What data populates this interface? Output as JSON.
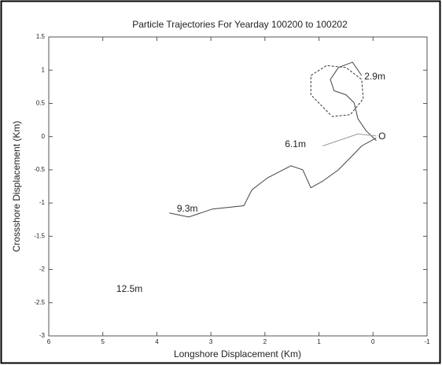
{
  "chart_data": {
    "type": "line",
    "title": "Particle Trajectories For Yearday 100200 to 100202",
    "x_label": "Longshore Displacement (Km)",
    "y_label": "Crossshore Displacement (Km)",
    "xlim": [
      6,
      -1
    ],
    "ylim": [
      -3,
      1.5
    ],
    "xticks": [
      6,
      5,
      4,
      3,
      2,
      1,
      0,
      -1
    ],
    "yticks": [
      1.5,
      1,
      0.5,
      0,
      -0.5,
      -1,
      -1.5,
      -2,
      -2.5,
      -3
    ],
    "series": [
      {
        "color": "#444444",
        "dash": false,
        "x": [
          -0.06,
          0.13,
          0.28,
          0.35,
          0.5,
          0.72,
          0.79,
          0.64,
          0.38,
          0.21
        ],
        "values": [
          -0.06,
          0.09,
          0.27,
          0.51,
          0.63,
          0.69,
          0.86,
          1.04,
          1.12,
          0.92
        ]
      },
      {
        "color": "#333333",
        "dash": true,
        "x": [
          0.79,
          1.15,
          1.15,
          0.86,
          0.5,
          0.21,
          0.18,
          0.42,
          0.79
        ],
        "values": [
          0.33,
          0.63,
          0.92,
          1.07,
          1.04,
          0.86,
          0.57,
          0.33,
          0.3
        ]
      },
      {
        "color": "#444444",
        "dash": false,
        "x": [
          -0.06,
          0.21,
          0.35,
          0.64,
          0.93,
          1.15,
          1.3,
          1.52,
          1.95,
          2.24,
          2.39,
          2.97,
          3.41,
          3.77
        ],
        "values": [
          -0.02,
          -0.14,
          -0.26,
          -0.5,
          -0.67,
          -0.77,
          -0.5,
          -0.44,
          -0.62,
          -0.8,
          -1.04,
          -1.09,
          -1.21,
          -1.15
        ]
      },
      {
        "color": "#999999",
        "dash": false,
        "x": [
          -0.06,
          0.28,
          0.64,
          0.93
        ],
        "values": [
          0.01,
          0.04,
          -0.06,
          -0.14
        ]
      }
    ],
    "annotations": [
      {
        "text": "2.9m",
        "x": 0.16,
        "y": 0.9
      },
      {
        "text": "6.1m",
        "x": 1.63,
        "y": -0.12
      },
      {
        "text": "9.3m",
        "x": 3.63,
        "y": -1.09
      },
      {
        "text": "12.5m",
        "x": 4.75,
        "y": -2.3
      },
      {
        "text": "O",
        "x": -0.1,
        "y": 0
      }
    ]
  }
}
